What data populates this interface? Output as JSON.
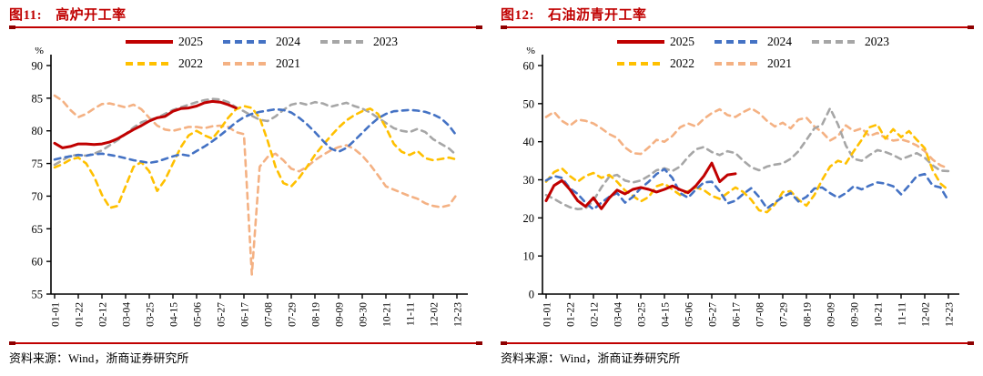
{
  "panels": [
    {
      "title_prefix": "图11:",
      "title_text": "高炉开工率",
      "source": "资料来源：Wind，浙商证券研究所"
    },
    {
      "title_prefix": "图12:",
      "title_text": "石油沥青开工率",
      "source": "资料来源：Wind，浙商证券研究所"
    }
  ],
  "chart_data": [
    {
      "type": "line",
      "title": "高炉开工率",
      "unit": "%",
      "ylim": [
        55,
        90
      ],
      "ytick_step": 5,
      "grid": false,
      "legend_position": "top",
      "x_tick_labels": [
        "01-01",
        "01-22",
        "02-12",
        "03-04",
        "03-25",
        "04-15",
        "05-06",
        "05-27",
        "06-17",
        "07-08",
        "07-29",
        "08-19",
        "09-09",
        "09-30",
        "10-21",
        "11-11",
        "12-02",
        "12-23"
      ],
      "draw_order": [
        4,
        2,
        3,
        1,
        0
      ],
      "series": [
        {
          "name": "2025",
          "color": "#c00000",
          "dash": "solid",
          "values": [
            78.1,
            77.4,
            77.6,
            78.0,
            78.0,
            77.9,
            78.0,
            78.3,
            78.8,
            79.5,
            80.2,
            80.8,
            81.5,
            82.0,
            82.2,
            83.0,
            83.4,
            83.5,
            83.8,
            84.3,
            84.5,
            84.4,
            84.0,
            83.5
          ]
        },
        {
          "name": "2024",
          "color": "#4472c4",
          "dash": "dashed",
          "values": [
            75.6,
            75.9,
            76.1,
            76.3,
            76.2,
            76.4,
            76.5,
            76.3,
            76.1,
            75.8,
            75.5,
            75.3,
            75.1,
            75.3,
            75.7,
            76.1,
            76.4,
            76.2,
            76.9,
            77.6,
            78.4,
            79.3,
            80.3,
            81.3,
            82.1,
            82.6,
            82.9,
            83.1,
            83.3,
            83.2,
            82.8,
            82.0,
            81.0,
            79.8,
            78.5,
            77.3,
            76.8,
            77.4,
            78.5,
            79.7,
            80.9,
            81.9,
            82.6,
            83.0,
            83.1,
            83.2,
            83.1,
            82.9,
            82.5,
            81.9,
            80.8,
            79.2
          ]
        },
        {
          "name": "2023",
          "color": "#a6a6a6",
          "dash": "dashed",
          "values": [
            74.8,
            75.5,
            76.2,
            76.3,
            76.2,
            76.5,
            77.0,
            77.8,
            78.6,
            79.5,
            80.5,
            81.3,
            81.7,
            82.0,
            82.6,
            83.2,
            83.6,
            84.0,
            84.4,
            84.7,
            84.9,
            84.8,
            84.4,
            83.6,
            83.0,
            82.3,
            81.7,
            81.5,
            82.2,
            83.2,
            84.0,
            84.3,
            84.0,
            84.4,
            84.2,
            83.7,
            84.0,
            84.3,
            83.8,
            83.4,
            82.8,
            82.0,
            81.2,
            80.4,
            80.0,
            79.8,
            80.3,
            79.8,
            78.7,
            78.0,
            77.3,
            76.2
          ]
        },
        {
          "name": "2022",
          "color": "#ffc000",
          "dash": "dashed",
          "values": [
            74.4,
            74.9,
            75.6,
            75.9,
            75.0,
            73.0,
            70.2,
            68.2,
            68.5,
            71.5,
            74.5,
            75.2,
            73.8,
            70.8,
            72.5,
            75.0,
            77.5,
            79.3,
            80.0,
            79.3,
            78.8,
            80.3,
            82.0,
            83.3,
            83.8,
            83.5,
            82.0,
            78.5,
            74.5,
            72.0,
            71.5,
            72.8,
            74.5,
            76.3,
            77.8,
            79.2,
            80.5,
            81.6,
            82.4,
            83.0,
            83.4,
            82.6,
            80.5,
            78.0,
            76.8,
            76.3,
            76.9,
            75.8,
            75.5,
            75.7,
            75.9,
            75.6
          ]
        },
        {
          "name": "2021",
          "color": "#f4b183",
          "dash": "dashed",
          "values": [
            85.4,
            84.6,
            83.2,
            82.1,
            82.6,
            83.4,
            84.1,
            84.2,
            83.9,
            83.6,
            84.0,
            83.3,
            82.0,
            80.8,
            80.2,
            80.0,
            80.3,
            80.6,
            80.6,
            80.4,
            80.7,
            80.8,
            80.6,
            79.8,
            79.5,
            58.0,
            74.5,
            76.0,
            76.5,
            75.5,
            74.2,
            73.8,
            74.5,
            75.5,
            76.3,
            77.0,
            77.5,
            77.8,
            77.2,
            76.2,
            74.8,
            73.2,
            71.5,
            71.0,
            70.5,
            70.0,
            69.6,
            68.9,
            68.5,
            68.3,
            68.6,
            70.3
          ]
        }
      ]
    },
    {
      "type": "line",
      "title": "石油沥青开工率",
      "unit": "%",
      "ylim": [
        0,
        60
      ],
      "ytick_step": 10,
      "grid": false,
      "legend_position": "top",
      "x_tick_labels": [
        "01-01",
        "01-22",
        "02-12",
        "03-04",
        "03-25",
        "04-15",
        "05-06",
        "05-27",
        "06-17",
        "07-08",
        "07-29",
        "08-19",
        "09-09",
        "09-30",
        "10-21",
        "11-11",
        "12-02",
        "12-23"
      ],
      "draw_order": [
        4,
        2,
        3,
        1,
        0
      ],
      "series": [
        {
          "name": "2025",
          "color": "#c00000",
          "dash": "solid",
          "values": [
            24.5,
            28.5,
            29.8,
            27.5,
            24.5,
            23.0,
            25.3,
            22.4,
            25.2,
            27.3,
            26.3,
            27.5,
            28.0,
            27.5,
            26.8,
            27.5,
            28.4,
            27.4,
            26.6,
            28.5,
            31.0,
            34.4,
            29.5,
            31.3,
            31.6
          ]
        },
        {
          "name": "2024",
          "color": "#4472c4",
          "dash": "dashed",
          "values": [
            29.8,
            31.0,
            30.5,
            27.8,
            26.3,
            24.0,
            22.2,
            24.0,
            25.5,
            26.5,
            24.0,
            25.5,
            27.8,
            29.5,
            31.5,
            32.8,
            30.5,
            26.5,
            25.3,
            27.5,
            29.3,
            29.5,
            27.0,
            23.8,
            24.5,
            26.3,
            27.8,
            25.5,
            22.5,
            24.0,
            25.5,
            26.5,
            24.3,
            25.5,
            27.7,
            28.0,
            26.5,
            25.3,
            26.5,
            28.3,
            27.5,
            28.5,
            29.3,
            29.0,
            28.3,
            26.2,
            28.5,
            31.0,
            31.5,
            28.5,
            28.0,
            24.5
          ]
        },
        {
          "name": "2023",
          "color": "#a6a6a6",
          "dash": "dashed",
          "values": [
            26.0,
            25.0,
            23.8,
            22.8,
            22.3,
            22.5,
            24.5,
            28.0,
            30.8,
            31.3,
            29.8,
            29.3,
            29.8,
            31.0,
            32.5,
            33.0,
            32.3,
            33.5,
            36.0,
            38.0,
            38.6,
            37.3,
            36.5,
            37.5,
            37.0,
            35.0,
            33.3,
            32.5,
            33.5,
            34.0,
            34.3,
            35.5,
            37.5,
            40.5,
            43.5,
            44.5,
            48.8,
            44.5,
            39.0,
            35.5,
            35.0,
            36.5,
            37.8,
            37.3,
            36.5,
            35.4,
            36.2,
            37.0,
            35.8,
            33.8,
            32.4,
            32.3
          ]
        },
        {
          "name": "2022",
          "color": "#ffc000",
          "dash": "dashed",
          "values": [
            29.5,
            32.0,
            33.0,
            31.0,
            29.5,
            31.0,
            31.8,
            30.5,
            31.3,
            29.5,
            27.2,
            25.8,
            24.3,
            25.5,
            28.3,
            29.0,
            27.5,
            26.0,
            27.0,
            28.0,
            27.3,
            25.8,
            25.0,
            26.5,
            28.0,
            26.8,
            24.8,
            22.0,
            21.5,
            23.5,
            26.8,
            27.0,
            24.8,
            23.2,
            26.0,
            30.0,
            33.5,
            35.0,
            34.3,
            37.5,
            40.5,
            43.8,
            44.5,
            40.8,
            43.3,
            41.2,
            42.8,
            40.5,
            38.3,
            32.5,
            29.0,
            27.3
          ]
        },
        {
          "name": "2021",
          "color": "#f4b183",
          "dash": "dashed",
          "values": [
            46.5,
            47.8,
            45.5,
            44.2,
            45.8,
            45.5,
            44.8,
            43.5,
            42.0,
            41.0,
            38.5,
            37.0,
            36.8,
            38.5,
            40.5,
            40.0,
            41.5,
            43.8,
            44.8,
            44.0,
            46.0,
            47.5,
            48.5,
            47.0,
            46.5,
            47.8,
            48.8,
            47.5,
            45.5,
            44.0,
            45.0,
            43.5,
            45.8,
            46.3,
            44.0,
            42.5,
            40.3,
            41.5,
            44.3,
            42.8,
            43.5,
            41.5,
            42.3,
            41.0,
            40.3,
            40.6,
            40.0,
            39.0,
            37.5,
            35.3,
            33.8,
            33.0
          ]
        }
      ]
    }
  ]
}
